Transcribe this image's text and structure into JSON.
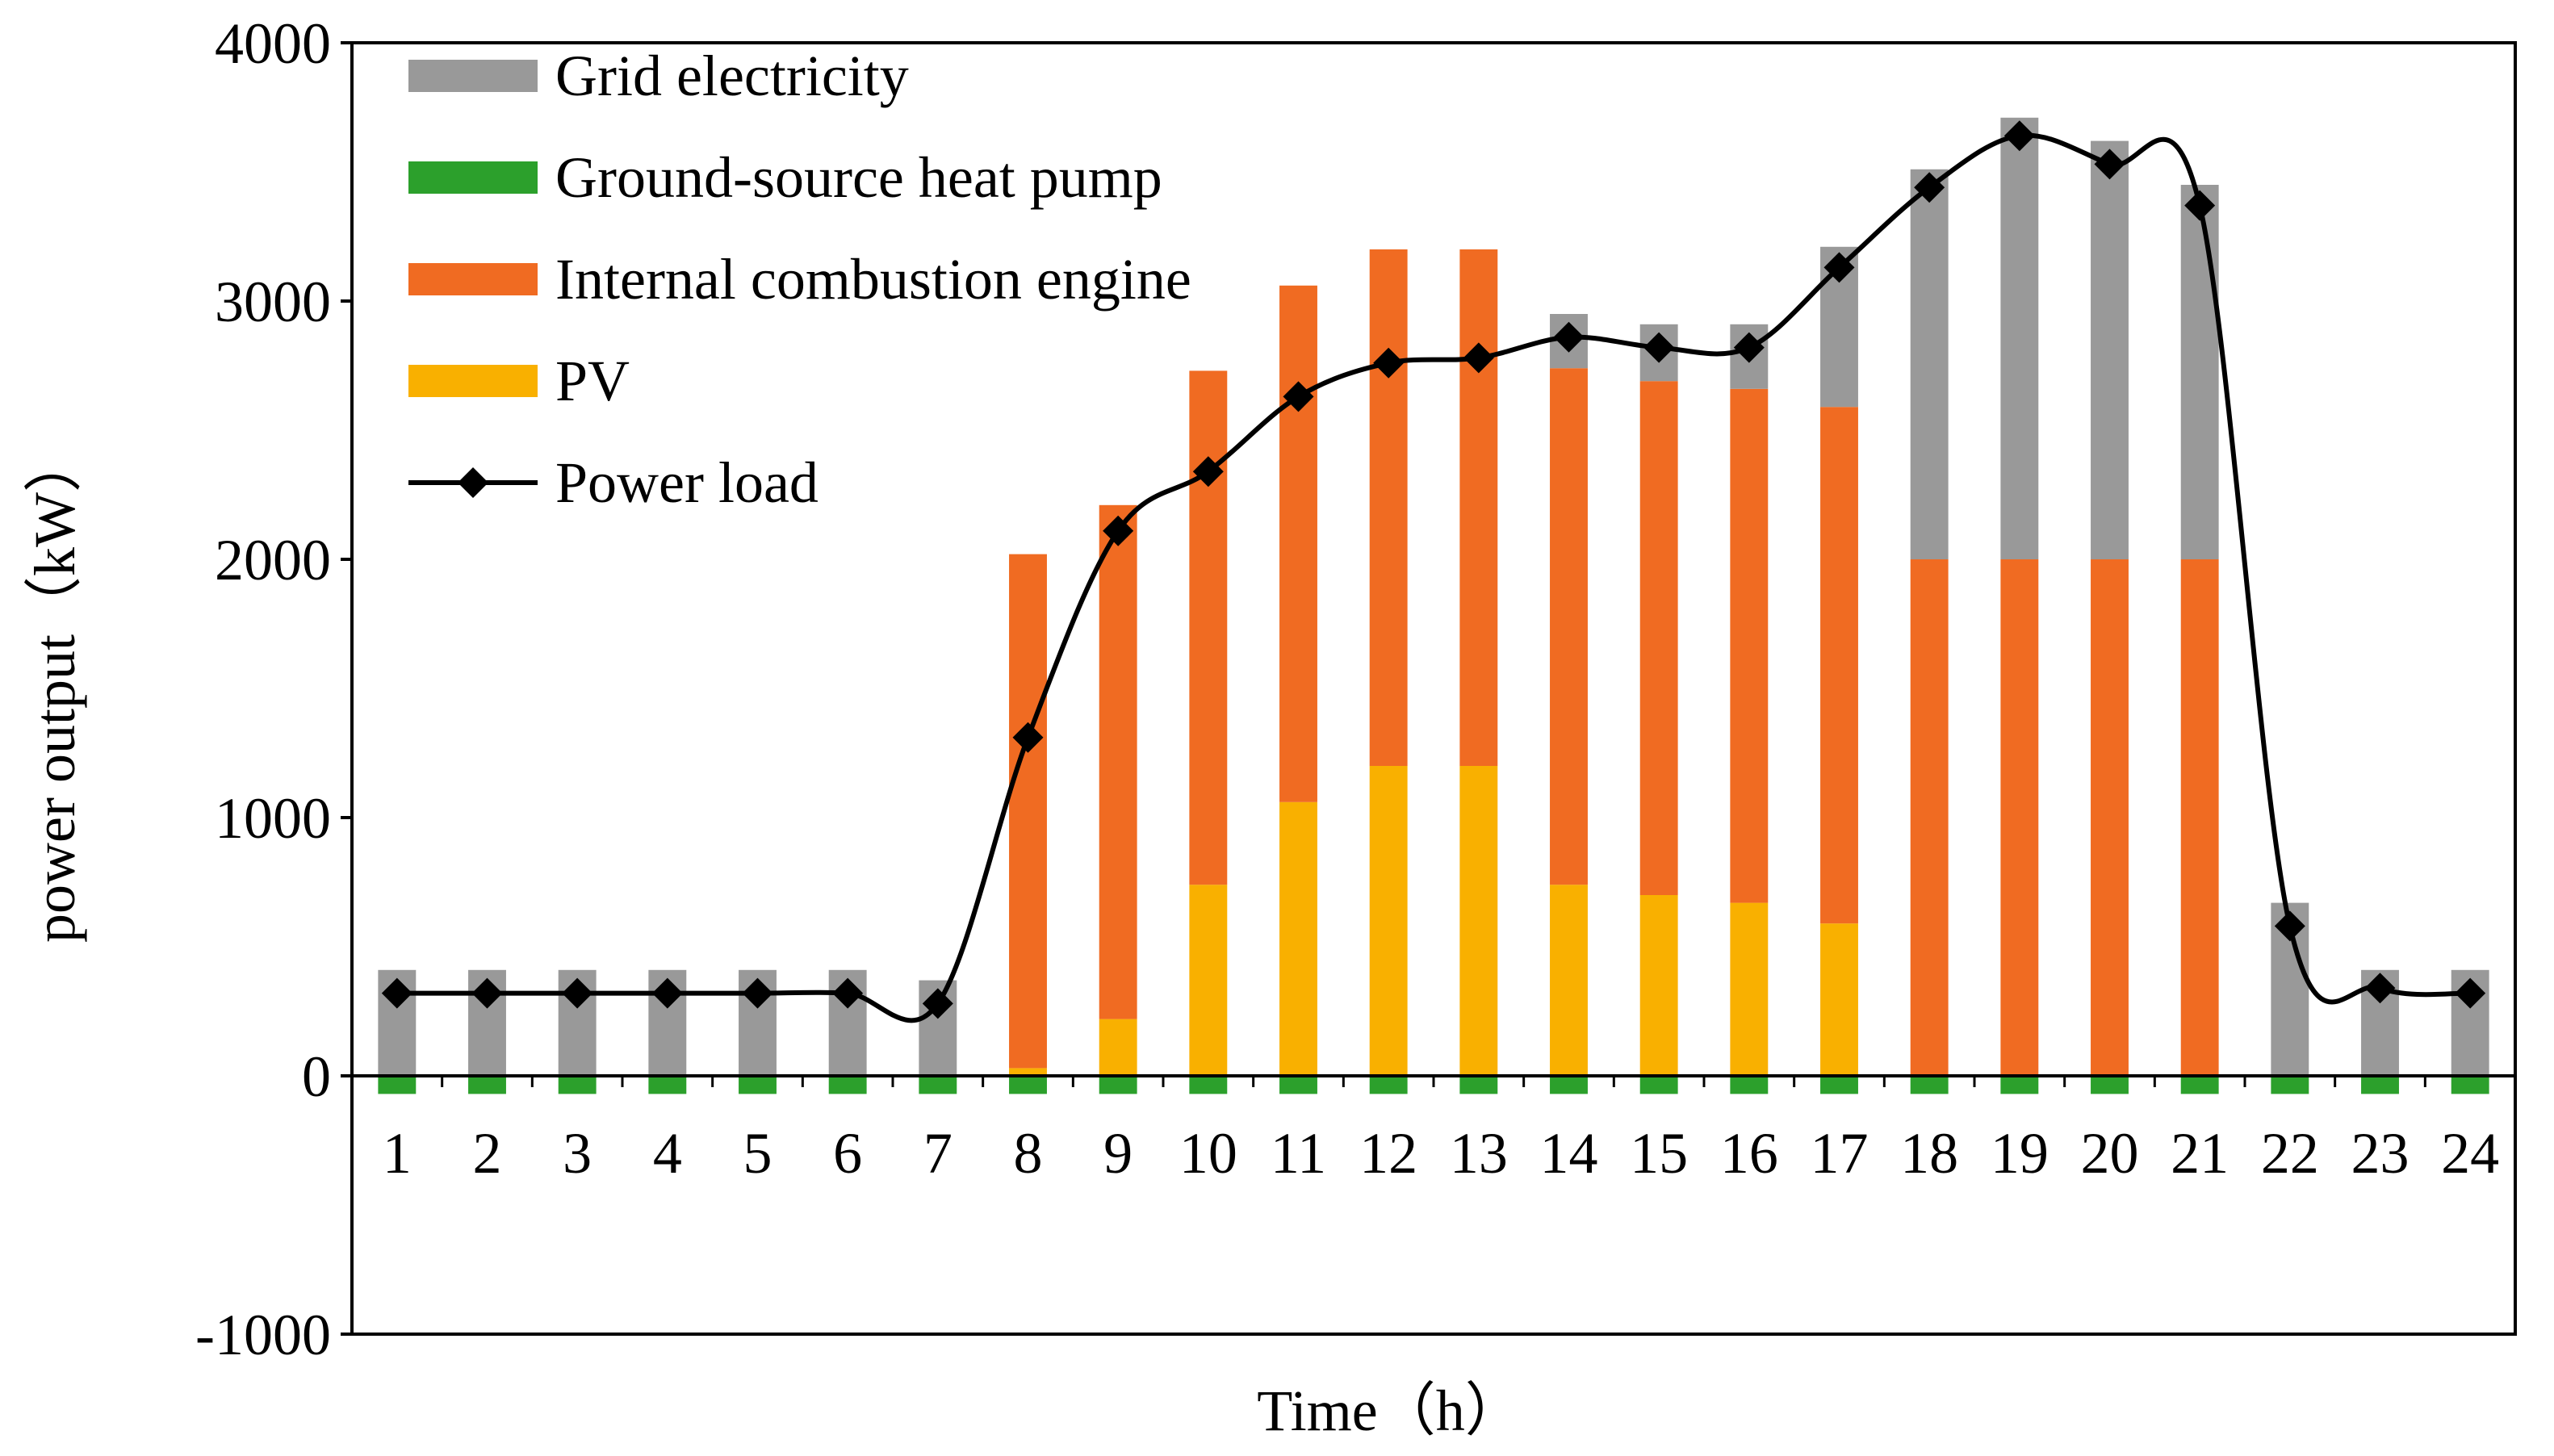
{
  "chart_data": {
    "type": "bar",
    "stacked": true,
    "title": "",
    "xlabel": "Time（h）",
    "ylabel": "power output（kW）",
    "ylim": [
      -1000,
      4000
    ],
    "yticks": [
      "4000",
      "3000",
      "2000",
      "1000",
      "0",
      "-1000"
    ],
    "categories": [
      "1",
      "2",
      "3",
      "4",
      "5",
      "6",
      "7",
      "8",
      "9",
      "10",
      "11",
      "12",
      "13",
      "14",
      "15",
      "16",
      "17",
      "18",
      "19",
      "20",
      "21",
      "22",
      "23",
      "24"
    ],
    "series": [
      {
        "name": "Grid electricity",
        "kind": "bar",
        "color": "#999999",
        "values": [
          410,
          410,
          410,
          410,
          410,
          410,
          370,
          0,
          0,
          0,
          0,
          0,
          0,
          210,
          220,
          250,
          620,
          1510,
          1710,
          1620,
          1450,
          670,
          410,
          410
        ]
      },
      {
        "name": "Ground-source heat pump",
        "kind": "bar",
        "color": "#2ca02c",
        "values": [
          -70,
          -70,
          -70,
          -70,
          -70,
          -70,
          -70,
          -70,
          -70,
          -70,
          -70,
          -70,
          -70,
          -70,
          -70,
          -70,
          -70,
          -70,
          -70,
          -70,
          -70,
          -70,
          -70,
          -70
        ]
      },
      {
        "name": "Internal combustion engine",
        "kind": "bar",
        "color": "#f06b22",
        "values": [
          0,
          0,
          0,
          0,
          0,
          0,
          0,
          1990,
          1990,
          1990,
          2000,
          2000,
          2000,
          2000,
          1990,
          1990,
          2000,
          2000,
          2000,
          2000,
          2000,
          0,
          0,
          0
        ]
      },
      {
        "name": "PV",
        "kind": "bar",
        "color": "#f9b000",
        "values": [
          0,
          0,
          0,
          0,
          0,
          0,
          0,
          30,
          220,
          740,
          1060,
          1200,
          1200,
          740,
          700,
          670,
          590,
          0,
          0,
          0,
          0,
          0,
          0,
          0
        ]
      },
      {
        "name": "Power load",
        "kind": "line",
        "color": "#000000",
        "values": [
          320,
          320,
          320,
          320,
          320,
          320,
          280,
          1310,
          2110,
          2340,
          2630,
          2760,
          2780,
          2860,
          2820,
          2820,
          3130,
          3440,
          3640,
          3530,
          3370,
          580,
          340,
          320
        ]
      }
    ],
    "legend": {
      "position": "top-left",
      "entries": [
        "Grid electricity",
        "Ground-source heat pump",
        "Internal combustion engine",
        "PV",
        "Power load"
      ]
    }
  }
}
